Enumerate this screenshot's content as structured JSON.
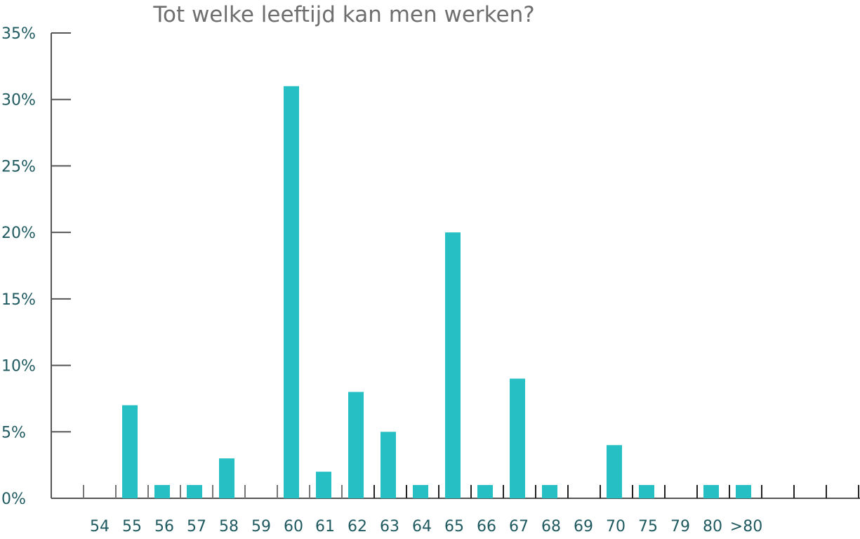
{
  "chart_data": {
    "type": "bar",
    "title": "Tot welke leeftijd kan men werken?",
    "xlabel": "",
    "ylabel": "",
    "categories": [
      "54",
      "55",
      "56",
      "57",
      "58",
      "59",
      "60",
      "61",
      "62",
      "63",
      "64",
      "65",
      "66",
      "67",
      "68",
      "69",
      "70",
      "75",
      "79",
      "80",
      ">80"
    ],
    "values": [
      0,
      7,
      1,
      1,
      3,
      0,
      31,
      2,
      8,
      5,
      1,
      20,
      1,
      9,
      1,
      0,
      4,
      1,
      0,
      1,
      1
    ],
    "ylim": [
      0,
      35
    ],
    "yticks": [
      "0%",
      "5%",
      "10%",
      "15%",
      "20%",
      "25%",
      "30%",
      "35%"
    ],
    "grid": false,
    "legend": "none",
    "colors": {
      "bar": "#26bfc4",
      "axis": "#555555",
      "tick_text": "#1f5a60",
      "title": "#6e6e6e"
    }
  }
}
